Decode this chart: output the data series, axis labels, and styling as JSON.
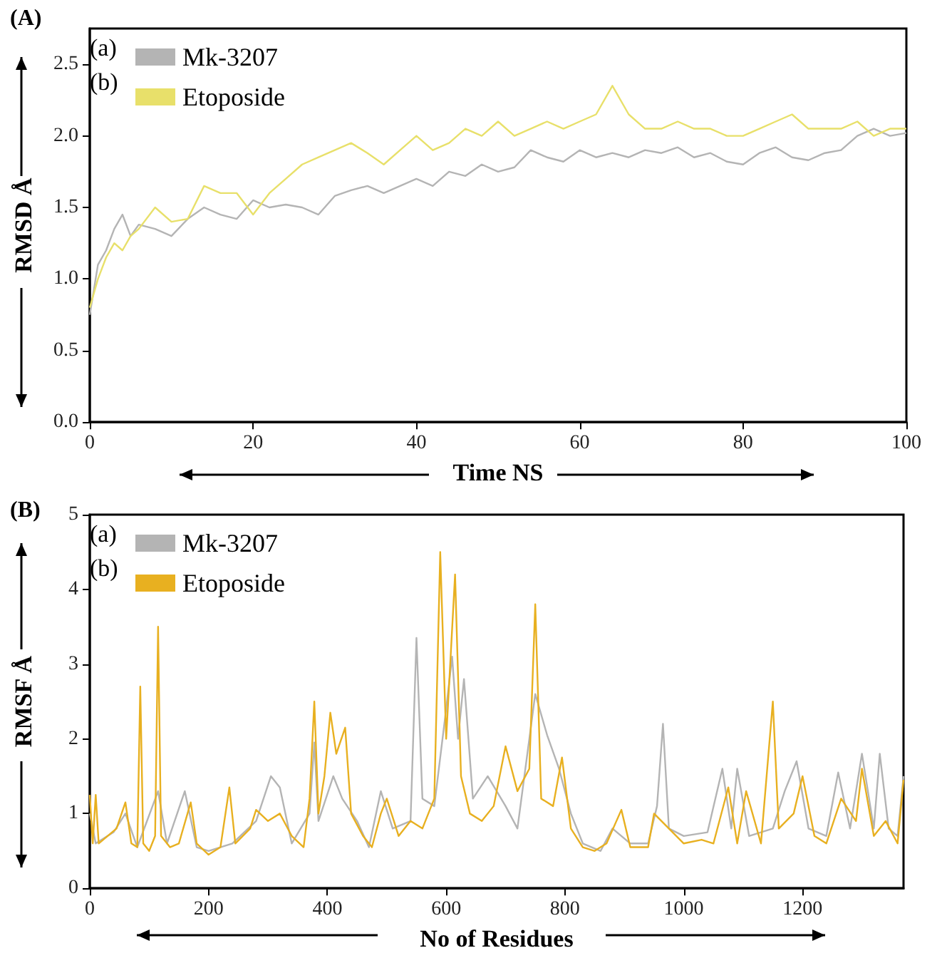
{
  "chart_data": [
    {
      "type": "line",
      "title": "(A)",
      "xlabel": "Time NS",
      "ylabel": "RMSD Å",
      "annotations": [
        "(a)",
        "(b)"
      ],
      "legend": "top left",
      "x": [
        0,
        1,
        2,
        3,
        4,
        5,
        6,
        8,
        10,
        12,
        14,
        16,
        18,
        20,
        22,
        24,
        26,
        28,
        30,
        32,
        34,
        36,
        38,
        40,
        42,
        44,
        46,
        48,
        50,
        52,
        54,
        56,
        58,
        60,
        62,
        64,
        66,
        68,
        70,
        72,
        74,
        76,
        78,
        80,
        82,
        84,
        86,
        88,
        90,
        92,
        94,
        96,
        98,
        100
      ],
      "series": [
        {
          "name": "Mk-3207",
          "color": "#b4b4b4",
          "values": [
            0.75,
            1.1,
            1.2,
            1.35,
            1.45,
            1.3,
            1.38,
            1.35,
            1.3,
            1.42,
            1.5,
            1.45,
            1.42,
            1.55,
            1.5,
            1.52,
            1.5,
            1.45,
            1.58,
            1.62,
            1.65,
            1.6,
            1.65,
            1.7,
            1.65,
            1.75,
            1.72,
            1.8,
            1.75,
            1.78,
            1.9,
            1.85,
            1.82,
            1.9,
            1.85,
            1.88,
            1.85,
            1.9,
            1.88,
            1.92,
            1.85,
            1.88,
            1.82,
            1.8,
            1.88,
            1.92,
            1.85,
            1.83,
            1.88,
            1.9,
            2.0,
            2.05,
            2.0,
            2.02
          ]
        },
        {
          "name": "Etoposide",
          "color": "#e8e06a",
          "values": [
            0.8,
            1.0,
            1.15,
            1.25,
            1.2,
            1.3,
            1.35,
            1.5,
            1.4,
            1.42,
            1.65,
            1.6,
            1.6,
            1.45,
            1.6,
            1.7,
            1.8,
            1.85,
            1.9,
            1.95,
            1.88,
            1.8,
            1.9,
            2.0,
            1.9,
            1.95,
            2.05,
            2.0,
            2.1,
            2.0,
            2.05,
            2.1,
            2.05,
            2.1,
            2.15,
            2.35,
            2.15,
            2.05,
            2.05,
            2.1,
            2.05,
            2.05,
            2.0,
            2.0,
            2.05,
            2.1,
            2.15,
            2.05,
            2.05,
            2.05,
            2.1,
            2.0,
            2.05,
            2.05
          ]
        }
      ],
      "xlim": [
        0,
        100
      ],
      "xticks": [
        0,
        20,
        40,
        60,
        80,
        100
      ],
      "ylim": [
        0,
        2.75
      ],
      "yticks": [
        {
          "value": 0,
          "label": "0.0"
        },
        {
          "value": 0.5,
          "label": "0.5"
        },
        {
          "value": 1,
          "label": "1.0"
        },
        {
          "value": 1.5,
          "label": "1.5"
        },
        {
          "value": 2,
          "label": "2.0"
        },
        {
          "value": 2.5,
          "label": "2.5"
        }
      ]
    },
    {
      "type": "line",
      "title": "(B)",
      "xlabel": "No of Residues",
      "ylabel": "RMSF Å",
      "annotations": [
        "(a)",
        "(b)"
      ],
      "legend": "top left",
      "series": [
        {
          "name": "Mk-3207",
          "color": "#b4b4b4",
          "x": [
            0,
            10,
            40,
            60,
            80,
            115,
            130,
            160,
            180,
            200,
            240,
            280,
            305,
            320,
            340,
            370,
            378,
            385,
            410,
            425,
            450,
            470,
            490,
            510,
            540,
            550,
            560,
            580,
            600,
            610,
            620,
            630,
            645,
            670,
            700,
            720,
            750,
            770,
            790,
            810,
            830,
            860,
            880,
            910,
            940,
            955,
            965,
            975,
            1000,
            1040,
            1065,
            1080,
            1090,
            1110,
            1150,
            1170,
            1190,
            1210,
            1240,
            1260,
            1280,
            1300,
            1320,
            1330,
            1345,
            1360,
            1370
          ],
          "values": [
            1.0,
            0.6,
            0.75,
            1.0,
            0.55,
            1.3,
            0.6,
            1.3,
            0.55,
            0.5,
            0.6,
            0.9,
            1.5,
            1.35,
            0.6,
            1.0,
            1.95,
            0.9,
            1.5,
            1.2,
            0.9,
            0.55,
            1.3,
            0.8,
            0.9,
            3.35,
            1.2,
            1.1,
            2.4,
            3.1,
            2.0,
            2.8,
            1.2,
            1.5,
            1.1,
            0.8,
            2.6,
            2.05,
            1.6,
            1.0,
            0.6,
            0.5,
            0.8,
            0.6,
            0.6,
            1.1,
            2.2,
            0.8,
            0.7,
            0.75,
            1.6,
            0.8,
            1.6,
            0.7,
            0.8,
            1.3,
            1.7,
            0.8,
            0.7,
            1.55,
            0.8,
            1.8,
            0.8,
            1.8,
            0.8,
            0.7,
            1.5
          ]
        },
        {
          "name": "Etoposide",
          "color": "#e8b020",
          "x": [
            0,
            5,
            10,
            15,
            30,
            45,
            60,
            70,
            80,
            85,
            90,
            100,
            110,
            115,
            120,
            135,
            150,
            170,
            180,
            200,
            220,
            235,
            245,
            270,
            280,
            300,
            320,
            340,
            360,
            370,
            378,
            385,
            395,
            405,
            415,
            430,
            440,
            460,
            475,
            490,
            500,
            520,
            540,
            560,
            580,
            590,
            600,
            615,
            625,
            640,
            660,
            680,
            700,
            720,
            740,
            750,
            760,
            780,
            795,
            810,
            830,
            850,
            870,
            895,
            910,
            940,
            950,
            975,
            1000,
            1030,
            1050,
            1075,
            1090,
            1105,
            1130,
            1150,
            1160,
            1185,
            1200,
            1220,
            1240,
            1265,
            1290,
            1300,
            1320,
            1340,
            1360,
            1370
          ],
          "values": [
            1.25,
            0.6,
            1.25,
            0.6,
            0.7,
            0.8,
            1.15,
            0.6,
            0.55,
            2.7,
            0.6,
            0.5,
            0.7,
            3.5,
            0.7,
            0.55,
            0.6,
            1.15,
            0.6,
            0.45,
            0.55,
            1.35,
            0.6,
            0.8,
            1.05,
            0.9,
            1.0,
            0.7,
            0.55,
            1.2,
            2.5,
            1.0,
            1.5,
            2.35,
            1.8,
            2.15,
            1.0,
            0.7,
            0.55,
            1.0,
            1.2,
            0.7,
            0.9,
            0.8,
            1.2,
            4.5,
            2.0,
            4.2,
            1.5,
            1.0,
            0.9,
            1.1,
            1.9,
            1.3,
            1.6,
            3.8,
            1.2,
            1.1,
            1.75,
            0.8,
            0.55,
            0.5,
            0.6,
            1.05,
            0.55,
            0.55,
            1.0,
            0.8,
            0.6,
            0.65,
            0.6,
            1.35,
            0.6,
            1.3,
            0.6,
            2.5,
            0.8,
            1.0,
            1.5,
            0.7,
            0.6,
            1.2,
            0.9,
            1.6,
            0.7,
            0.9,
            0.6,
            1.45
          ]
        }
      ],
      "xlim": [
        0,
        1370
      ],
      "xticks": [
        0,
        200,
        400,
        600,
        800,
        1000,
        1200
      ],
      "ylim": [
        0,
        5
      ],
      "yticks": [
        0,
        1,
        2,
        3,
        4,
        5
      ]
    }
  ]
}
